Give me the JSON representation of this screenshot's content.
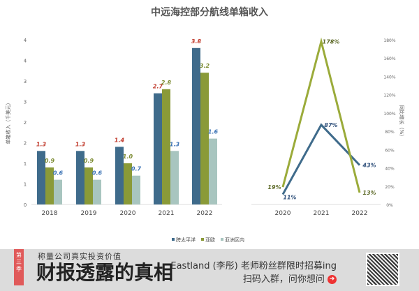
{
  "chart_data": [
    {
      "type": "bar",
      "title": "中远海控部分航线单箱收入",
      "ylabel": "单箱收入（千美元）",
      "ylim": [
        0,
        4
      ],
      "yticks": [
        "0",
        "1",
        "1",
        "2",
        "2",
        "3",
        "3",
        "4",
        "4"
      ],
      "categories": [
        "2018",
        "2019",
        "2020",
        "2021",
        "2022"
      ],
      "series": [
        {
          "name": "跨太平洋",
          "color": "#3f6b8b",
          "label_color": "#c0392b",
          "values": [
            1.3,
            1.3,
            1.4,
            2.7,
            3.8
          ]
        },
        {
          "name": "亚欧",
          "color": "#8a9a38",
          "label_color": "#7d8c33",
          "values": [
            0.9,
            0.9,
            1.0,
            2.8,
            3.2
          ]
        },
        {
          "name": "亚洲区内",
          "color": "#a8c5bf",
          "label_color": "#3c73b5",
          "values": [
            0.6,
            0.6,
            0.7,
            1.3,
            1.6
          ]
        }
      ],
      "legend": "bottom"
    },
    {
      "type": "line",
      "ylabel": "同比增长（%）",
      "ylim": [
        0,
        180
      ],
      "yticks": [
        "0%",
        "20%",
        "40%",
        "60%",
        "80%",
        "100%",
        "120%",
        "140%",
        "160%",
        "180%"
      ],
      "categories": [
        "2020",
        "2021",
        "2022"
      ],
      "series": [
        {
          "color": "#3f6b8b",
          "label_color": "#2e4f7a",
          "values": [
            11,
            87,
            43
          ]
        },
        {
          "color": "#9bab3a",
          "label_color": "#5f6b2a",
          "values": [
            19,
            178,
            13
          ]
        }
      ]
    }
  ],
  "banner": {
    "ribbon": "第三季",
    "subtitle": "称量公司真实投资价值",
    "title": "财报透露的真相",
    "promo": "Eastland (李彤) 老师粉丝群限时招募ing",
    "cta": "扫码入群，问你想问",
    "arrow_icon": "arrow-right-circle-icon"
  }
}
